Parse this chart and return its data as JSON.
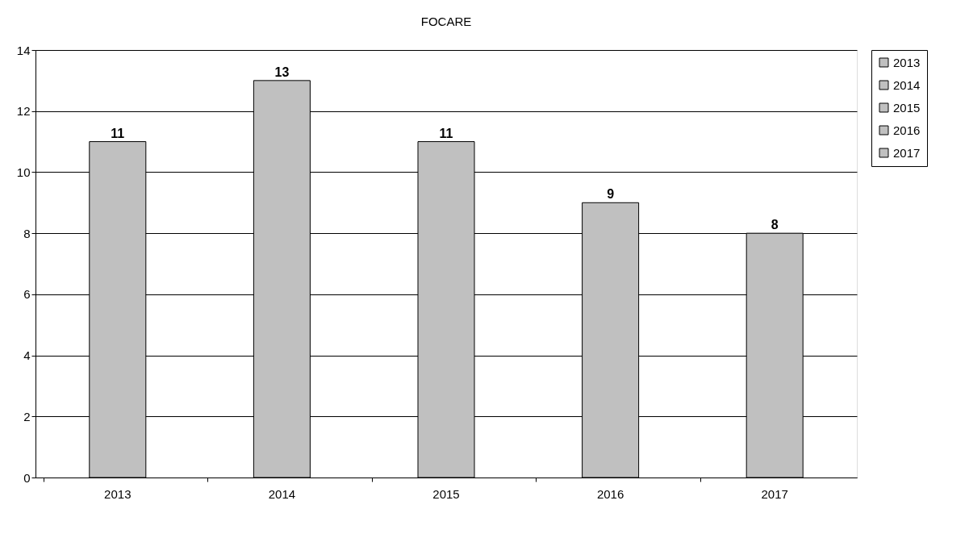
{
  "chart_data": {
    "type": "bar",
    "title": "FOCARE",
    "categories": [
      "2013",
      "2014",
      "2015",
      "2016",
      "2017"
    ],
    "series": [
      {
        "name": "2013",
        "color": "#c0c0c0",
        "values": [
          11,
          null,
          null,
          null,
          null
        ]
      },
      {
        "name": "2014",
        "color": "#c0c0c0",
        "values": [
          null,
          13,
          null,
          null,
          null
        ]
      },
      {
        "name": "2015",
        "color": "#c0c0c0",
        "values": [
          null,
          null,
          11,
          null,
          null
        ]
      },
      {
        "name": "2016",
        "color": "#c0c0c0",
        "values": [
          null,
          null,
          null,
          9,
          null
        ]
      },
      {
        "name": "2017",
        "color": "#c0c0c0",
        "values": [
          null,
          null,
          null,
          null,
          8
        ]
      }
    ],
    "ylim": [
      0,
      14
    ],
    "yticks": [
      0,
      2,
      4,
      6,
      8,
      10,
      12,
      14
    ],
    "grid": "y",
    "legend": "right",
    "data_labels": true
  }
}
